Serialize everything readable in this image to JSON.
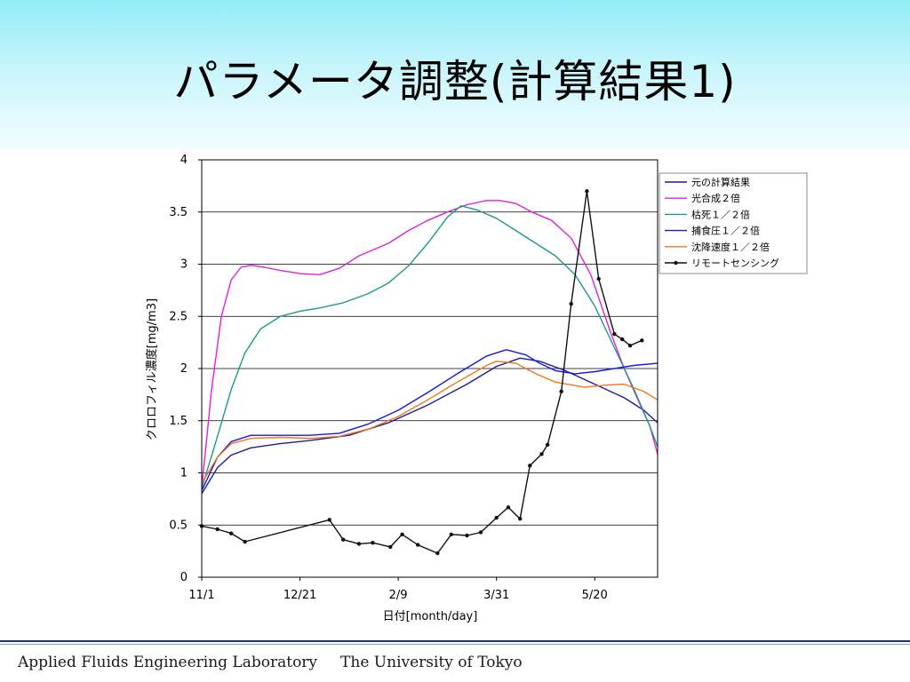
{
  "slide": {
    "title": "パラメータ調整(計算結果1)",
    "footer_lab": "Applied Fluids Engineering Laboratory",
    "footer_univ": "The University of Tokyo"
  },
  "colors": {
    "header_top": "#92ecf8",
    "footer_rule": "#1a2f9a"
  },
  "chart_data": {
    "type": "line",
    "title": "",
    "xlabel": "日付[month/day]",
    "ylabel": "クロロフィル濃度[mg/m3]",
    "ylim": [
      0,
      4
    ],
    "yticks": [
      "0",
      "0.5",
      "1",
      "1.5",
      "2",
      "2.5",
      "3",
      "3.5",
      "4"
    ],
    "xlim": [
      0,
      232
    ],
    "xticks": [
      {
        "day": 0,
        "label": "11/1"
      },
      {
        "day": 50,
        "label": "12/21"
      },
      {
        "day": 100,
        "label": "2/9"
      },
      {
        "day": 150,
        "label": "3/31"
      },
      {
        "day": 200,
        "label": "5/20"
      }
    ],
    "grid": "horizontal",
    "legend_position": "top-right",
    "series": [
      {
        "name": "元の計算結果",
        "color": "#1c1c9c",
        "markers": false,
        "x": [
          0,
          8,
          15,
          25,
          40,
          55,
          75,
          95,
          115,
          135,
          150,
          162,
          172,
          185,
          200,
          215,
          225,
          232
        ],
        "y": [
          0.8,
          1.05,
          1.17,
          1.24,
          1.28,
          1.31,
          1.36,
          1.48,
          1.65,
          1.85,
          2.02,
          2.1,
          2.07,
          1.98,
          1.85,
          1.72,
          1.6,
          1.48
        ]
      },
      {
        "name": "光合成２倍",
        "color": "#e020e0",
        "markers": false,
        "x": [
          0,
          5,
          10,
          15,
          20,
          25,
          32,
          40,
          50,
          60,
          70,
          80,
          95,
          105,
          115,
          125,
          135,
          145,
          152,
          160,
          168,
          178,
          188,
          198,
          208,
          215,
          222,
          228,
          232
        ],
        "y": [
          0.85,
          1.8,
          2.5,
          2.85,
          2.97,
          2.99,
          2.97,
          2.94,
          2.91,
          2.9,
          2.96,
          3.08,
          3.2,
          3.32,
          3.42,
          3.5,
          3.57,
          3.61,
          3.61,
          3.58,
          3.5,
          3.42,
          3.25,
          2.9,
          2.35,
          2.0,
          1.7,
          1.45,
          1.18
        ]
      },
      {
        "name": "枯死１／２倍",
        "color": "#1a9a8a",
        "markers": false,
        "x": [
          0,
          8,
          15,
          22,
          30,
          40,
          50,
          60,
          72,
          85,
          95,
          105,
          115,
          125,
          132,
          140,
          150,
          160,
          170,
          180,
          190,
          200,
          210,
          220,
          228,
          232
        ],
        "y": [
          0.85,
          1.35,
          1.8,
          2.15,
          2.38,
          2.5,
          2.55,
          2.58,
          2.63,
          2.72,
          2.82,
          2.98,
          3.2,
          3.45,
          3.56,
          3.52,
          3.44,
          3.32,
          3.2,
          3.08,
          2.9,
          2.6,
          2.2,
          1.8,
          1.45,
          1.25
        ]
      },
      {
        "name": "捕食圧１／２倍",
        "color": "#1818e0",
        "markers": false,
        "x": [
          0,
          8,
          15,
          25,
          40,
          55,
          70,
          85,
          100,
          115,
          130,
          145,
          155,
          165,
          172,
          180,
          190,
          200,
          210,
          220,
          232
        ],
        "y": [
          0.83,
          1.15,
          1.3,
          1.36,
          1.36,
          1.36,
          1.38,
          1.47,
          1.6,
          1.77,
          1.95,
          2.12,
          2.18,
          2.13,
          2.05,
          1.98,
          1.95,
          1.97,
          2.0,
          2.03,
          2.05
        ]
      },
      {
        "name": "沈降速度１／２倍",
        "color": "#f07818",
        "markers": false,
        "x": [
          0,
          8,
          15,
          25,
          40,
          55,
          70,
          85,
          100,
          115,
          130,
          145,
          150,
          160,
          170,
          180,
          195,
          205,
          215,
          225,
          232
        ],
        "y": [
          0.9,
          1.15,
          1.28,
          1.33,
          1.34,
          1.33,
          1.35,
          1.42,
          1.54,
          1.7,
          1.87,
          2.03,
          2.07,
          2.05,
          1.95,
          1.87,
          1.82,
          1.84,
          1.85,
          1.78,
          1.7
        ]
      },
      {
        "name": "リモートセンシング",
        "color": "#111111",
        "markers": true,
        "x": [
          0,
          8,
          15,
          22,
          65,
          72,
          80,
          87,
          96,
          102,
          110,
          120,
          127,
          135,
          142,
          150,
          156,
          162,
          167,
          173,
          176,
          183,
          188,
          196,
          202,
          210,
          214,
          218,
          224
        ],
        "y": [
          0.49,
          0.46,
          0.42,
          0.34,
          0.55,
          0.36,
          0.32,
          0.33,
          0.29,
          0.41,
          0.31,
          0.23,
          0.41,
          0.4,
          0.43,
          0.57,
          0.67,
          0.56,
          1.07,
          1.18,
          1.27,
          1.78,
          2.62,
          3.7,
          2.86,
          2.33,
          2.28,
          2.22,
          2.27
        ]
      }
    ]
  }
}
